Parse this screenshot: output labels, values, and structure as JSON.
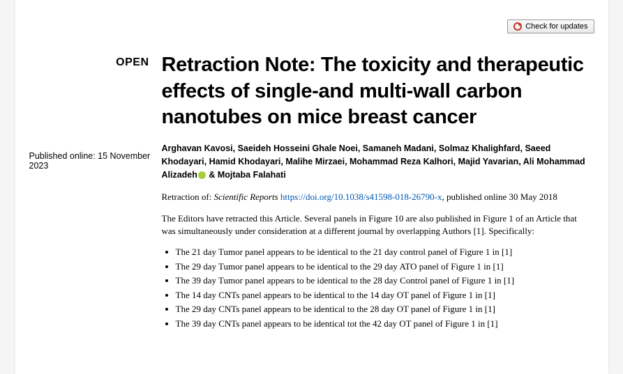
{
  "badge": {
    "label": "Check for updates"
  },
  "left": {
    "open": "OPEN",
    "published": "Published online: 15 November 2023"
  },
  "article": {
    "title": "Retraction Note: The toxicity and therapeutic effects of single-and multi-wall carbon nanotubes on mice breast cancer",
    "authors_before_orcid": "Arghavan Kavosi, Saeideh Hosseini Ghale Noei, Samaneh Madani, Solmaz Khalighfard, Saeed Khodayari, Hamid Khodayari, Malihe Mirzaei, Mohammad Reza Kalhori, Majid Yavarian, Ali Mohammad Alizadeh",
    "authors_after_orcid": " & Mojtaba Falahati",
    "retraction_prefix": "Retraction of: ",
    "journal": "Scientific Reports",
    "doi_link": "https://doi.org/10.1038/s41598-018-26790-x",
    "retraction_suffix": ", published online 30 May 2018",
    "intro": "The Editors have retracted this Article. Several panels in Figure 10 are also published in Figure 1 of an Article that was simultaneously under consideration at a different journal by overlapping Authors [1]. Specifically:",
    "bullets": [
      "The 21 day Tumor panel appears to be identical to the 21 day control panel of Figure 1 in [1]",
      "The 29 day Tumor panel appears to be identical to the 29 day ATO panel of Figure 1 in [1]",
      "The 39 day Tumor panel appears to be identical to the 28 day Control panel of Figure 1 in [1]",
      "The 14 day CNTs panel appears to be identical to the 14 day OT panel of Figure 1 in [1]",
      "The 29 day CNTs panel appears to be identical to the 28 day OT panel of Figure 1 in [1]",
      "The 39 day CNTs panel appears to be identical tot the 42 day OT panel of Figure 1 in [1]"
    ]
  }
}
